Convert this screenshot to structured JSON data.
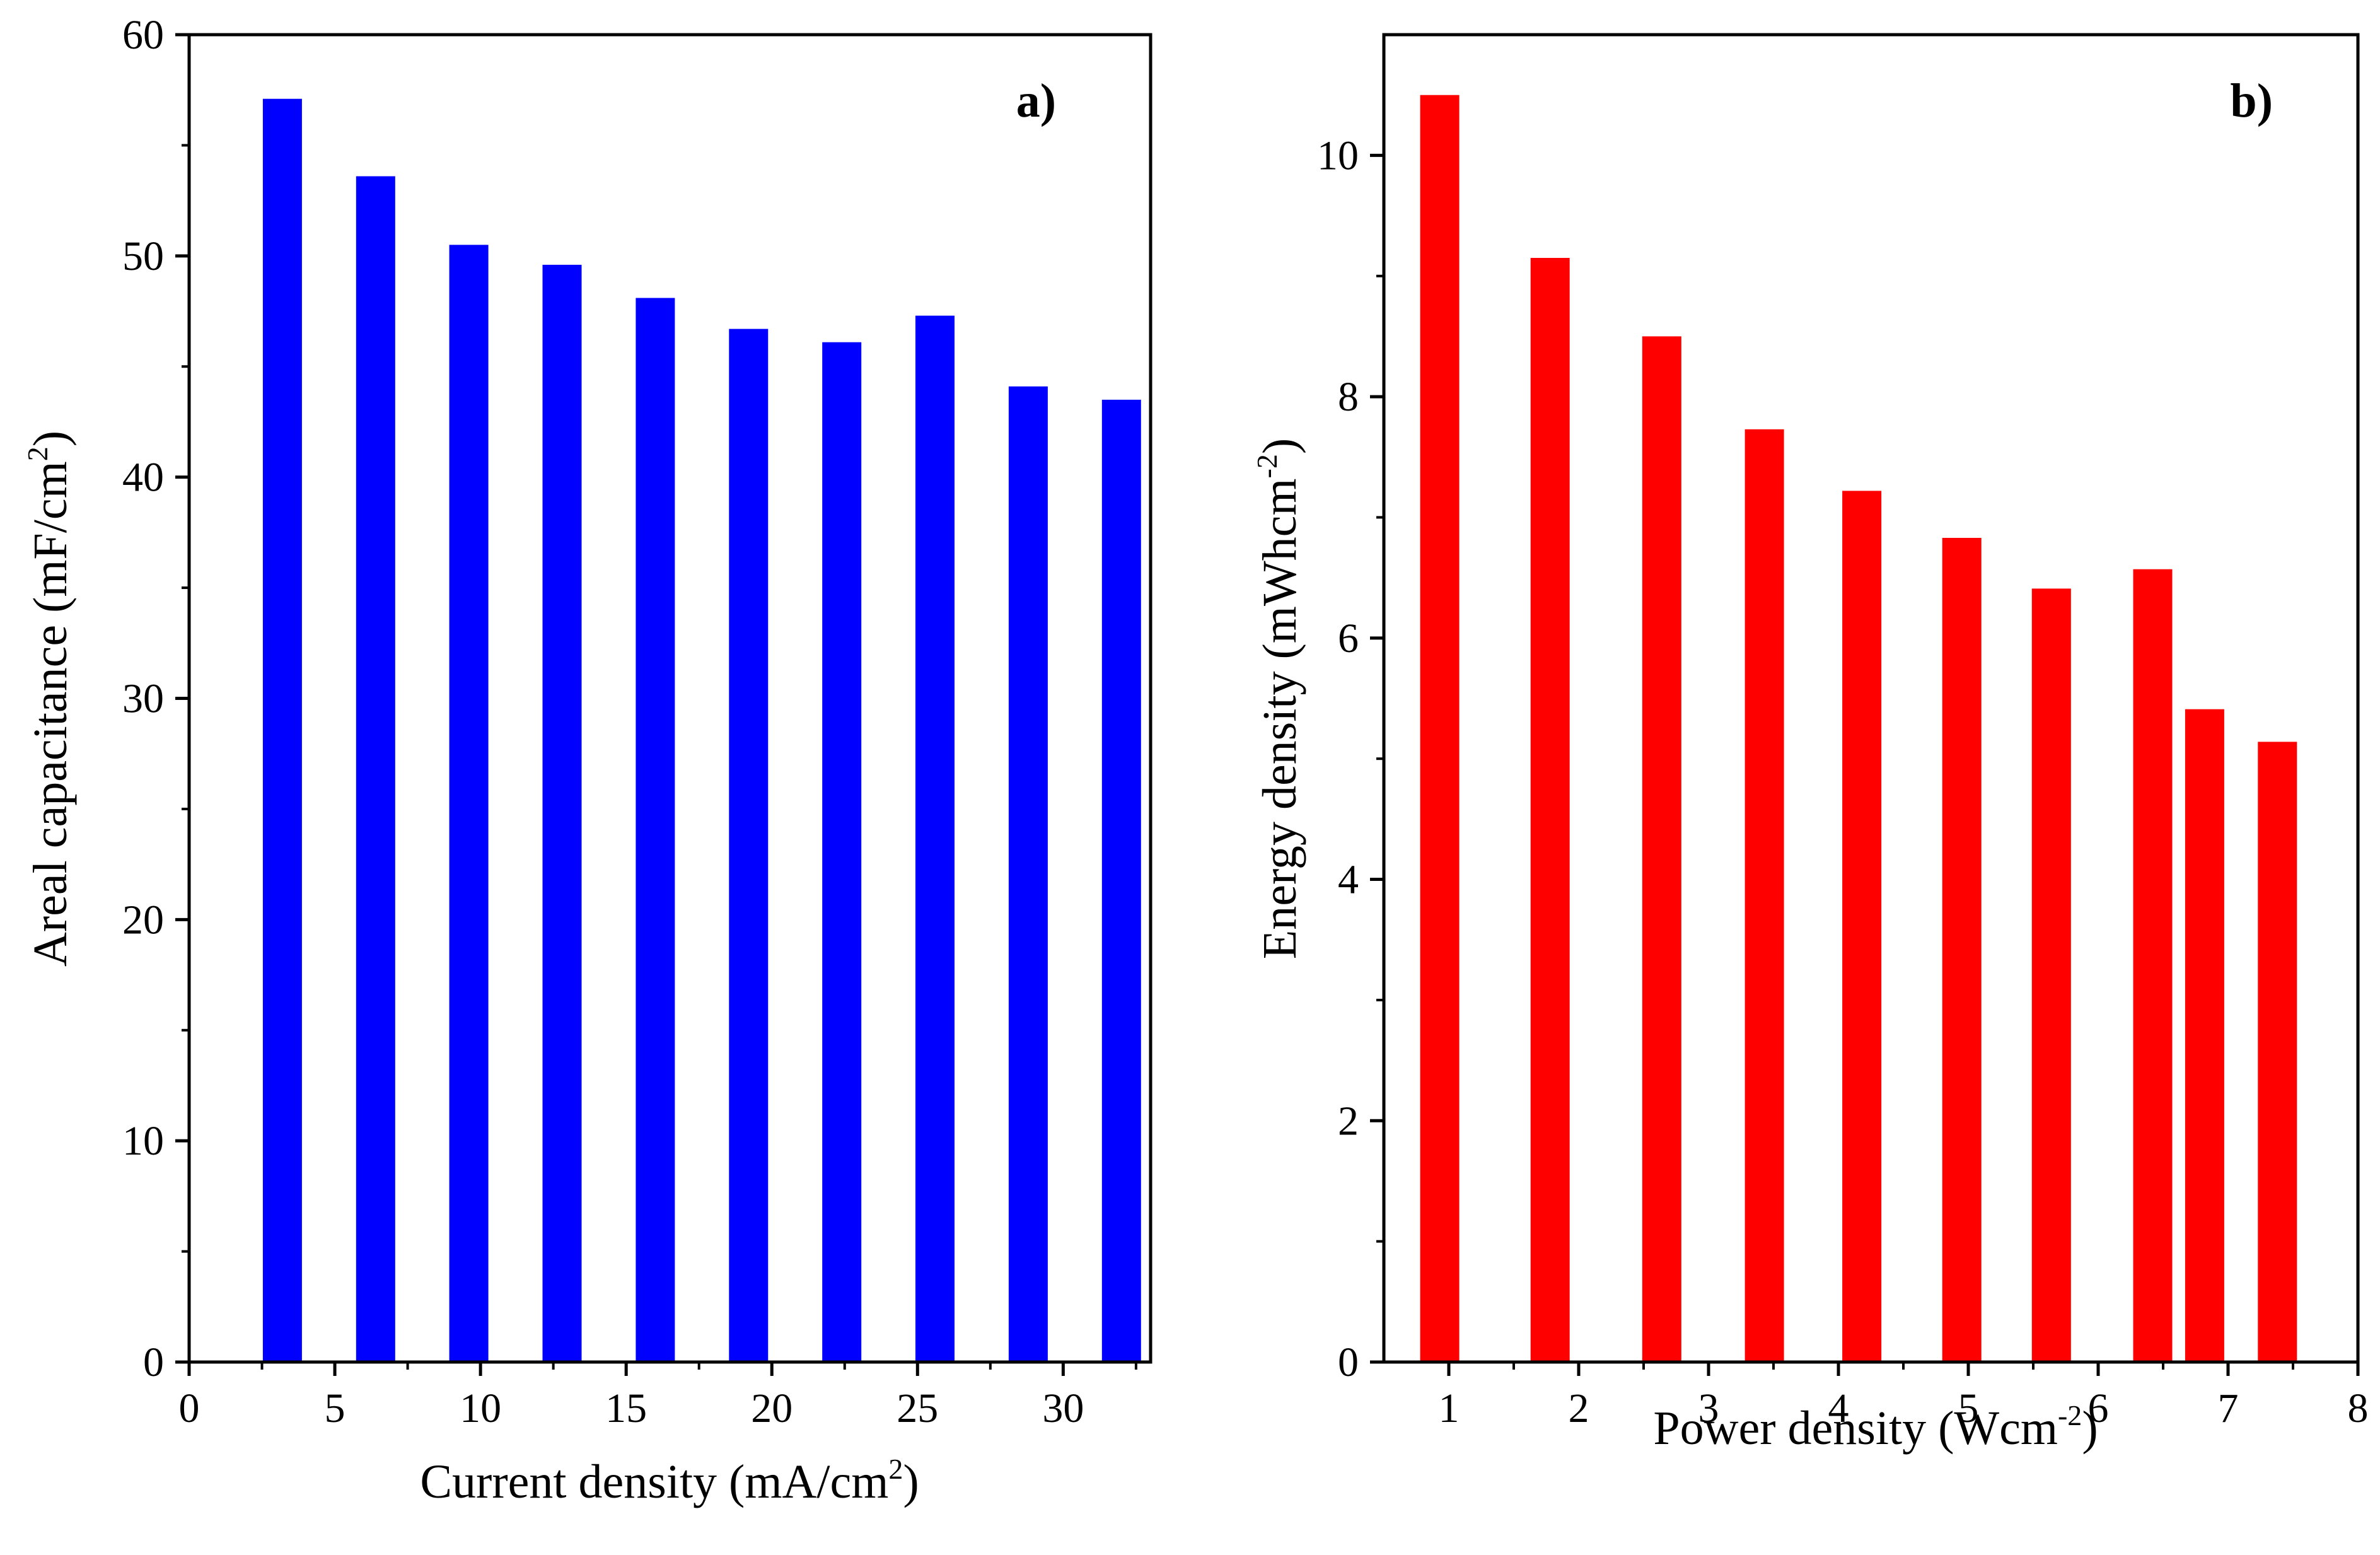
{
  "chart_data": [
    {
      "type": "bar",
      "panel_label": "a)",
      "xlabel": {
        "text": "Current density (mA/cm",
        "sup": "2",
        "close": ")"
      },
      "ylabel": {
        "text": "Areal capacitance (mF/cm",
        "sup": "2",
        "close": ")"
      },
      "xlim": [
        0,
        33
      ],
      "ylim": [
        0,
        60
      ],
      "xticks": [
        "0",
        "5",
        "10",
        "15",
        "20",
        "25",
        "30"
      ],
      "yticks": [
        "0",
        "10",
        "20",
        "30",
        "40",
        "50",
        "60"
      ],
      "x": [
        3.2,
        6.4,
        9.6,
        12.8,
        16,
        19.2,
        22.4,
        25.6,
        28.8,
        32
      ],
      "values": [
        57.1,
        53.6,
        50.5,
        49.6,
        48.1,
        46.7,
        46.1,
        47.3,
        44.1,
        43.5
      ],
      "color": "#0000ff"
    },
    {
      "type": "bar",
      "panel_label": "b)",
      "xlabel": {
        "text": "Power density (Wcm",
        "sup": "-2",
        "close": ")"
      },
      "ylabel": {
        "text": "Energy density (mWhcm",
        "sup": "-2",
        "close": ")"
      },
      "xlim": [
        0.5,
        8
      ],
      "ylim": [
        0,
        11
      ],
      "xticks": [
        "1",
        "2",
        "3",
        "4",
        "5",
        "6",
        "7",
        "8"
      ],
      "yticks": [
        "0",
        "2",
        "4",
        "6",
        "8",
        "10"
      ],
      "x": [
        0.93,
        1.78,
        2.64,
        3.43,
        4.18,
        4.95,
        5.64,
        6.42,
        6.82,
        7.38
      ],
      "values": [
        10.5,
        9.15,
        8.5,
        7.73,
        7.22,
        6.83,
        6.41,
        6.57,
        5.41,
        5.14
      ],
      "color": "#ff0000"
    }
  ]
}
